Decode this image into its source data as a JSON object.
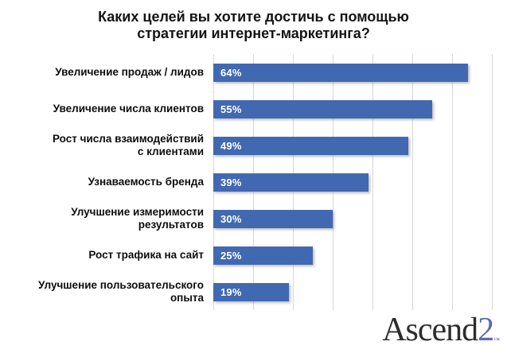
{
  "title": {
    "line1": "Каких целей вы хотите достичь с помощью",
    "line2": "стратегии интернет-маркетинга?"
  },
  "chart_data": {
    "type": "bar",
    "orientation": "horizontal",
    "title": "Каких целей вы хотите достичь с помощью стратегии интернет-маркетинга?",
    "categories": [
      "Увеличение продаж / лидов",
      "Увеличение числа клиентов",
      "Рост числа взаимодействий\nс клиентами",
      "Узнаваемость бренда",
      "Улучшение измеримости результатов",
      "Рост трафика на сайт",
      "Улучшение пользовательского\nопыта"
    ],
    "values": [
      64,
      55,
      49,
      39,
      30,
      25,
      19
    ],
    "value_labels": [
      "64%",
      "55%",
      "49%",
      "39%",
      "30%",
      "25%",
      "19%"
    ],
    "xlabel": "",
    "ylabel": "",
    "xlim": [
      0,
      70
    ],
    "gridline_step": 10,
    "grid": true,
    "bar_color": "#4169b2",
    "value_label_color": "#ffffff",
    "gridline_color": "#d8d8d8",
    "legend": false
  },
  "logo": {
    "brand": "Ascend",
    "suffix": "2",
    "trademark": "™",
    "brand_color": "#2e2e30",
    "suffix_color": "#5d6bac"
  }
}
